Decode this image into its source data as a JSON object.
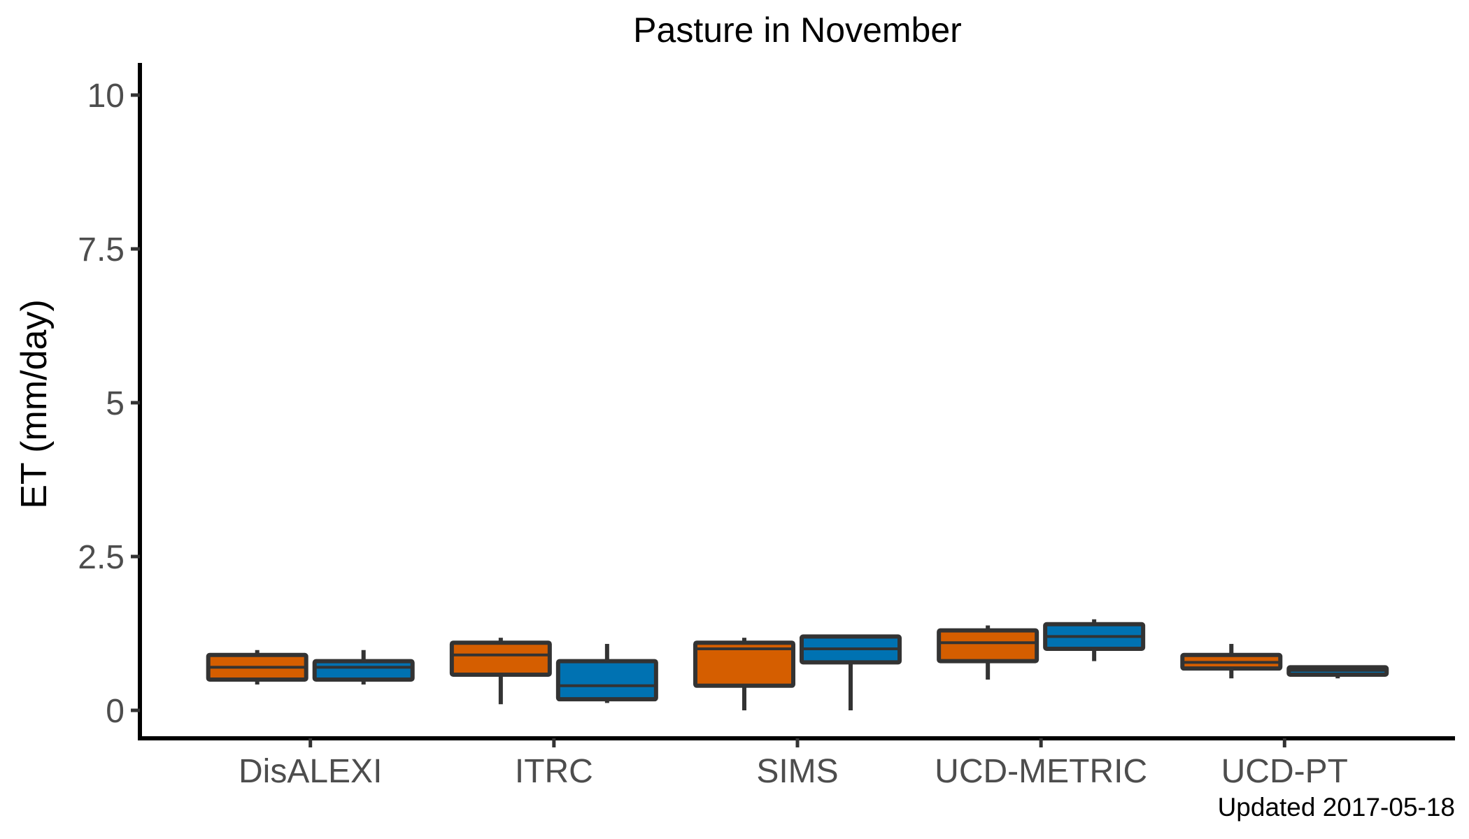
{
  "chart_data": {
    "type": "boxplot",
    "title": "Pasture in November",
    "xlabel": "",
    "ylabel": "ET (mm/day)",
    "ylim": [
      -0.5,
      10.5
    ],
    "yticks": [
      0,
      2.5,
      5,
      7.5,
      10
    ],
    "ytick_labels": [
      "0",
      "2.5",
      "5",
      "7.5",
      "10"
    ],
    "grid": false,
    "legend": "none",
    "categories": [
      "DisALEXI",
      "ITRC",
      "SIMS",
      "UCD-METRIC",
      "UCD-PT"
    ],
    "series": [
      {
        "color": "#d55e00",
        "boxes": [
          {
            "min": 0.42,
            "q1": 0.5,
            "median": 0.7,
            "q3": 0.9,
            "max": 0.98
          },
          {
            "min": 0.1,
            "q1": 0.58,
            "median": 0.9,
            "q3": 1.1,
            "max": 1.18
          },
          {
            "min": 0.0,
            "q1": 0.4,
            "median": 1.0,
            "q3": 1.1,
            "max": 1.18
          },
          {
            "min": 0.5,
            "q1": 0.8,
            "median": 1.1,
            "q3": 1.3,
            "max": 1.38
          },
          {
            "min": 0.52,
            "q1": 0.68,
            "median": 0.78,
            "q3": 0.9,
            "max": 1.08
          }
        ]
      },
      {
        "color": "#0072b2",
        "boxes": [
          {
            "min": 0.42,
            "q1": 0.5,
            "median": 0.7,
            "q3": 0.8,
            "max": 0.98
          },
          {
            "min": 0.12,
            "q1": 0.18,
            "median": 0.4,
            "q3": 0.8,
            "max": 1.08
          },
          {
            "min": 0.0,
            "q1": 0.78,
            "median": 1.0,
            "q3": 1.2,
            "max": 1.2
          },
          {
            "min": 0.8,
            "q1": 1.0,
            "median": 1.2,
            "q3": 1.4,
            "max": 1.48
          },
          {
            "min": 0.52,
            "q1": 0.58,
            "median": 0.65,
            "q3": 0.7,
            "max": 0.7
          }
        ]
      }
    ],
    "caption": "Updated  2017-05-18"
  }
}
